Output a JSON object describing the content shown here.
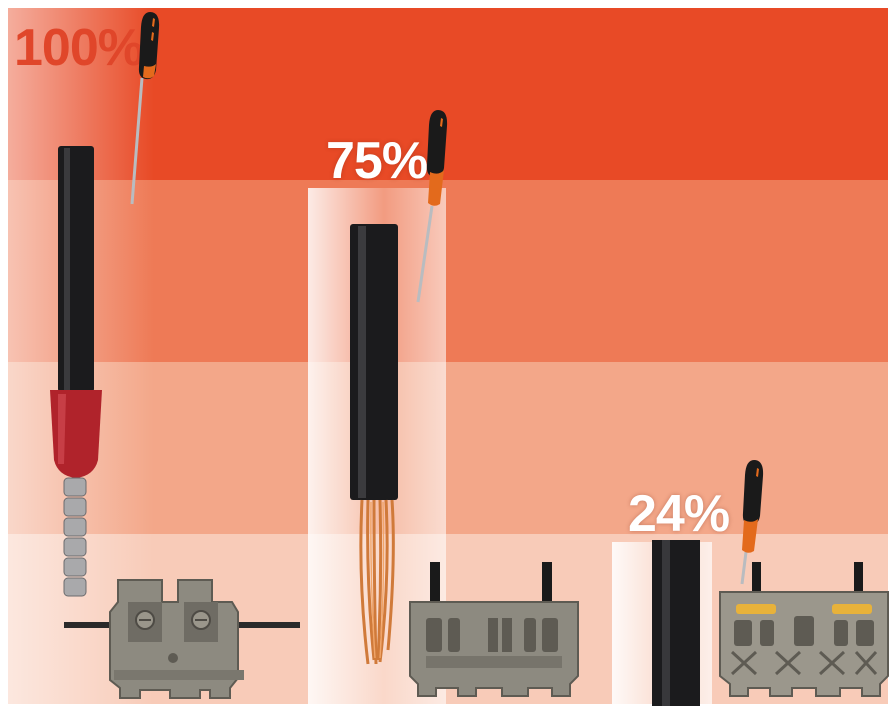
{
  "scene": {
    "colors": {
      "band_1": "#e84a26",
      "band_2": "#ee7a56",
      "band_3": "#f3a789",
      "band_4": "#f8cbb8",
      "cable": "#1b1b1d",
      "ferrule": "#b0232b",
      "copper": "#d07a3a",
      "terminal_block": "#8d8a80",
      "screwdriver_handle": "#e36a1c",
      "screwdriver_grip": "#1a1a1a"
    },
    "icons": [
      "screwdriver-icon",
      "cable-icon",
      "ferrule-icon",
      "terminal-block-icon"
    ]
  },
  "panels": [
    {
      "percent_label": "100%",
      "conductor": "cable-with-ferrule",
      "terminal": "screw-terminal-block"
    },
    {
      "percent_label": "75%",
      "conductor": "stripped-stranded-cable",
      "terminal": "spring-terminal-block"
    },
    {
      "percent_label": "24%",
      "conductor": "solid-cable",
      "terminal": "push-in-terminal-block"
    }
  ]
}
